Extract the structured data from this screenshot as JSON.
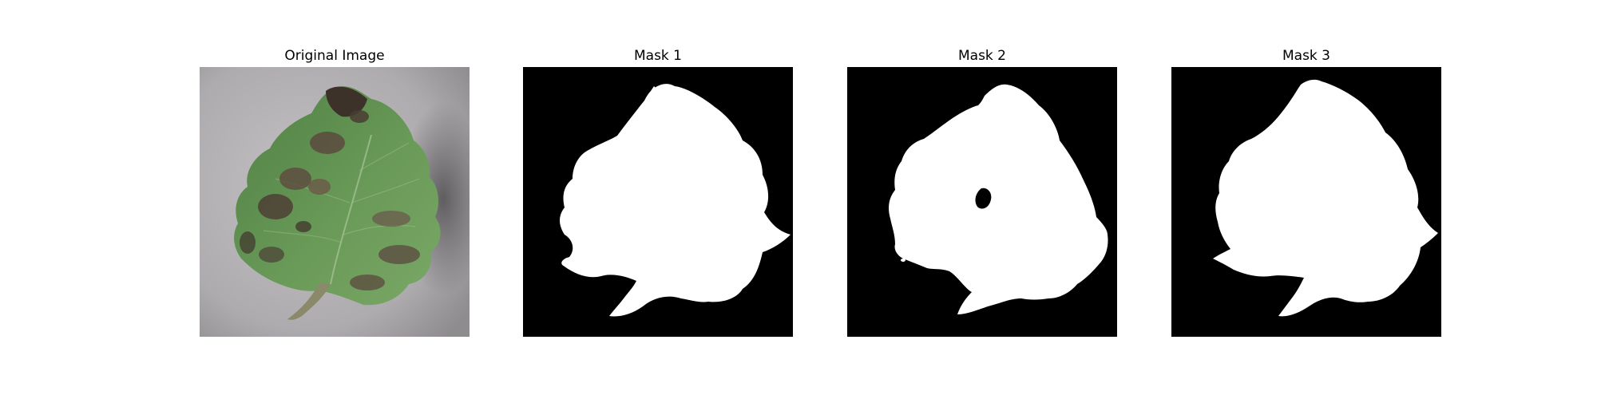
{
  "panels": [
    {
      "title": "Original Image",
      "kind": "photo"
    },
    {
      "title": "Mask 1",
      "kind": "mask"
    },
    {
      "title": "Mask 2",
      "kind": "mask"
    },
    {
      "title": "Mask 3",
      "kind": "mask"
    }
  ],
  "colors": {
    "mask_background": "#000000",
    "mask_foreground": "#ffffff",
    "photo_background": "#b7b4b8",
    "leaf_green": "#5a8a4c",
    "leaf_light": "#7fa86a",
    "lesion_brown": "#5b4a3e"
  }
}
